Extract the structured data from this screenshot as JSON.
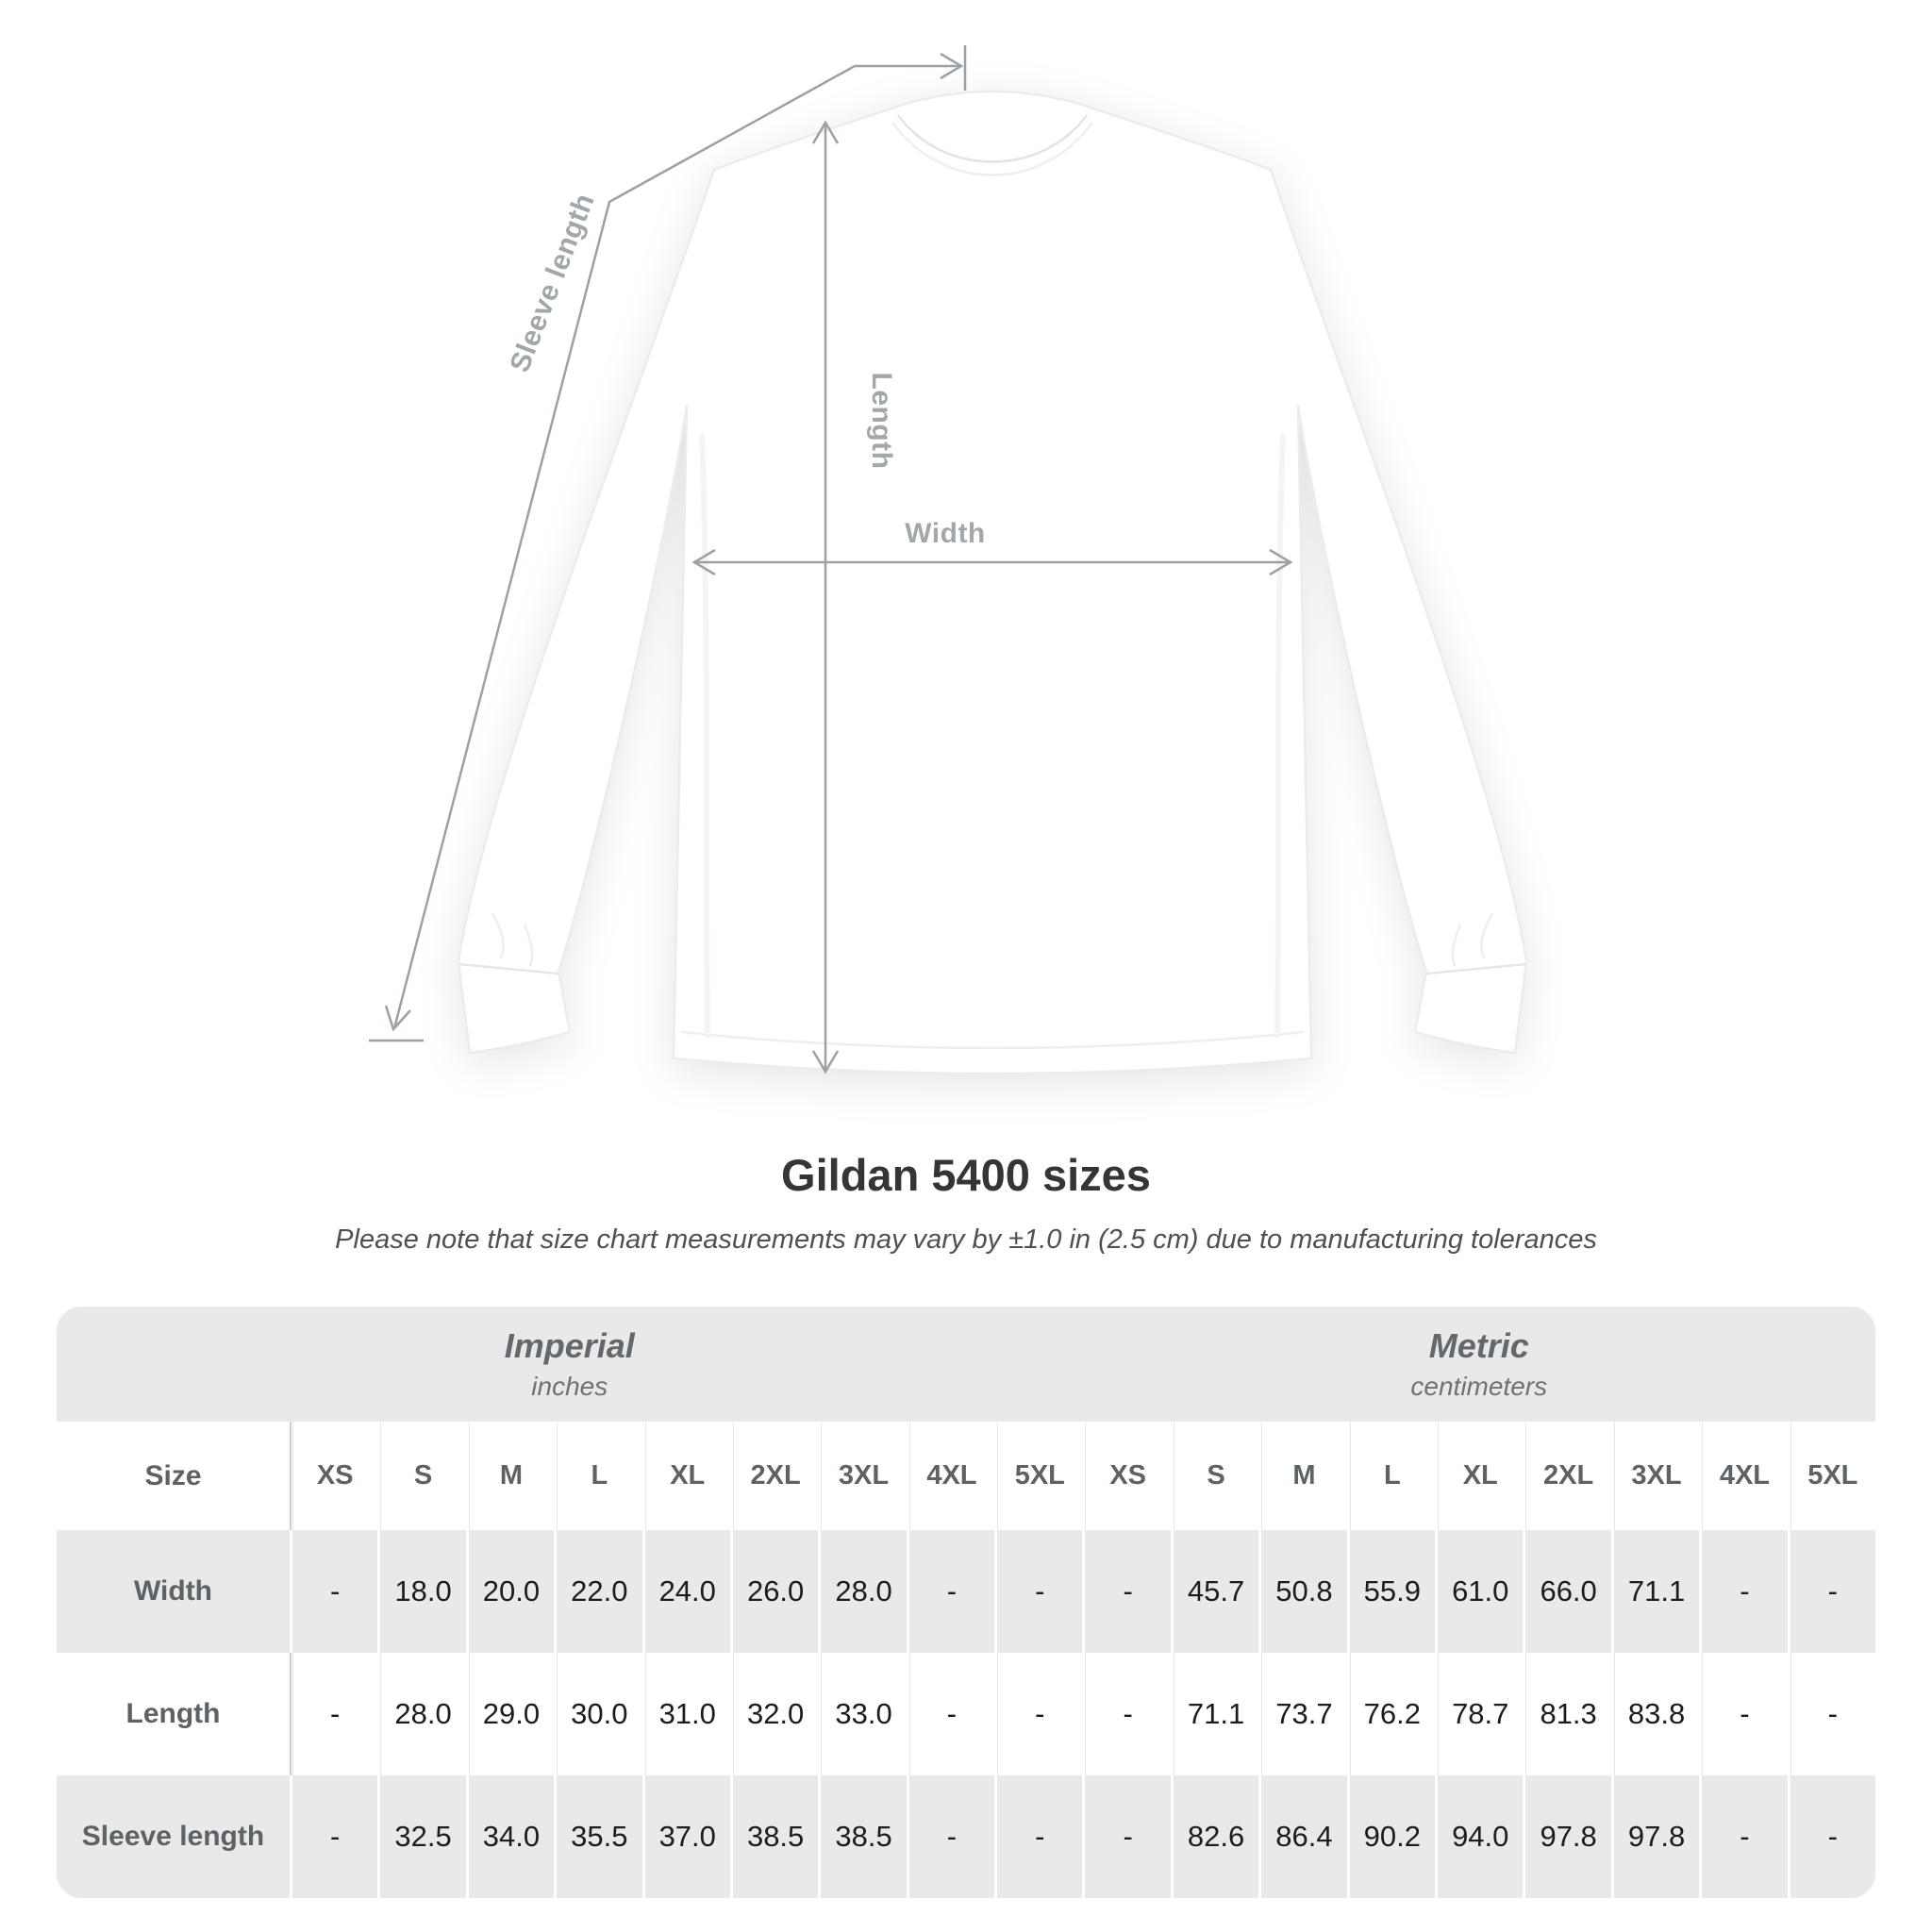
{
  "title": "Gildan 5400 sizes",
  "note": "Please note that size chart measurements may vary by ±1.0 in (2.5 cm) due to manufacturing tolerances",
  "diagram": {
    "labels": {
      "sleeve_length": "Sleeve length",
      "length": "Length",
      "width": "Width"
    },
    "line_color": "#9ba1a5"
  },
  "chart_data": {
    "type": "table",
    "title": "Gildan 5400 sizes",
    "row_header": "Size",
    "column_groups": [
      {
        "name": "Imperial",
        "unit": "inches",
        "sizes": [
          "XS",
          "S",
          "M",
          "L",
          "XL",
          "2XL",
          "3XL",
          "4XL",
          "5XL"
        ]
      },
      {
        "name": "Metric",
        "unit": "centimeters",
        "sizes": [
          "XS",
          "S",
          "M",
          "L",
          "XL",
          "2XL",
          "3XL",
          "4XL",
          "5XL"
        ]
      }
    ],
    "rows": [
      {
        "label": "Width",
        "imperial": [
          "-",
          "18.0",
          "20.0",
          "22.0",
          "24.0",
          "26.0",
          "28.0",
          "-",
          "-"
        ],
        "metric": [
          "-",
          "45.7",
          "50.8",
          "55.9",
          "61.0",
          "66.0",
          "71.1",
          "-",
          "-"
        ]
      },
      {
        "label": "Length",
        "imperial": [
          "-",
          "28.0",
          "29.0",
          "30.0",
          "31.0",
          "32.0",
          "33.0",
          "-",
          "-"
        ],
        "metric": [
          "-",
          "71.1",
          "73.7",
          "76.2",
          "78.7",
          "81.3",
          "83.8",
          "-",
          "-"
        ]
      },
      {
        "label": "Sleeve length",
        "imperial": [
          "-",
          "32.5",
          "34.0",
          "35.5",
          "37.0",
          "38.5",
          "38.5",
          "-",
          "-"
        ],
        "metric": [
          "-",
          "82.6",
          "86.4",
          "90.2",
          "94.0",
          "97.8",
          "97.8",
          "-",
          "-"
        ]
      }
    ]
  }
}
